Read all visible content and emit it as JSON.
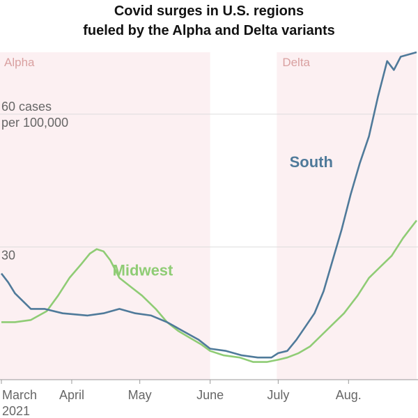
{
  "title_lines": [
    "Covid surges in U.S. regions",
    "fueled by the Alpha and Delta variants"
  ],
  "colors": {
    "south": "#4f7a9a",
    "midwest": "#8fcc75",
    "shade": "#fcf0f2",
    "period_label": "#d9a0a0",
    "grid": "#dddddd",
    "axis_text": "#666666"
  },
  "chart_data": {
    "type": "line",
    "title": "Covid surges in U.S. regions fueled by the Alpha and Delta variants",
    "xlabel": "",
    "ylabel": "cases per 100,000",
    "ylim": [
      0,
      74
    ],
    "xlim": [
      "2021-03-01",
      "2021-08-31"
    ],
    "y_ticks": [
      {
        "value": 30,
        "lines": [
          "30"
        ]
      },
      {
        "value": 60,
        "lines": [
          "60 cases",
          "per 100,000"
        ]
      }
    ],
    "x_ticks": [
      {
        "date": "2021-03-01",
        "lines": [
          "March",
          "2021"
        ]
      },
      {
        "date": "2021-04-01",
        "lines": [
          "April"
        ]
      },
      {
        "date": "2021-05-01",
        "lines": [
          "May"
        ]
      },
      {
        "date": "2021-06-01",
        "lines": [
          "June"
        ]
      },
      {
        "date": "2021-07-01",
        "lines": [
          "July"
        ]
      },
      {
        "date": "2021-08-01",
        "lines": [
          "Aug."
        ]
      }
    ],
    "periods": [
      {
        "label": "Alpha",
        "start": "2021-03-01",
        "end": "2021-06-01"
      },
      {
        "label": "Delta",
        "start": "2021-07-01",
        "end": "2021-08-31"
      }
    ],
    "series": [
      {
        "name": "South",
        "points": [
          [
            "2021-03-01",
            24
          ],
          [
            "2021-03-04",
            22
          ],
          [
            "2021-03-07",
            19.5
          ],
          [
            "2021-03-10",
            18
          ],
          [
            "2021-03-14",
            16
          ],
          [
            "2021-03-20",
            16
          ],
          [
            "2021-03-28",
            15
          ],
          [
            "2021-04-08",
            14.5
          ],
          [
            "2021-04-15",
            15
          ],
          [
            "2021-04-22",
            16
          ],
          [
            "2021-04-29",
            15
          ],
          [
            "2021-05-06",
            14.5
          ],
          [
            "2021-05-13",
            13
          ],
          [
            "2021-05-20",
            11
          ],
          [
            "2021-05-27",
            9
          ],
          [
            "2021-06-01",
            7
          ],
          [
            "2021-06-08",
            6.5
          ],
          [
            "2021-06-15",
            5.5
          ],
          [
            "2021-06-22",
            5
          ],
          [
            "2021-06-28",
            5
          ],
          [
            "2021-07-01",
            6
          ],
          [
            "2021-07-05",
            6.5
          ],
          [
            "2021-07-09",
            9
          ],
          [
            "2021-07-13",
            12
          ],
          [
            "2021-07-17",
            15
          ],
          [
            "2021-07-21",
            20
          ],
          [
            "2021-07-25",
            27
          ],
          [
            "2021-07-29",
            34
          ],
          [
            "2021-08-02",
            42
          ],
          [
            "2021-08-06",
            49
          ],
          [
            "2021-08-10",
            55
          ],
          [
            "2021-08-14",
            64
          ],
          [
            "2021-08-18",
            72
          ],
          [
            "2021-08-21",
            70
          ],
          [
            "2021-08-24",
            73
          ],
          [
            "2021-08-31",
            74
          ]
        ]
      },
      {
        "name": "Midwest",
        "points": [
          [
            "2021-03-01",
            13
          ],
          [
            "2021-03-07",
            13
          ],
          [
            "2021-03-14",
            13.5
          ],
          [
            "2021-03-21",
            15.5
          ],
          [
            "2021-03-26",
            19
          ],
          [
            "2021-03-31",
            23
          ],
          [
            "2021-04-05",
            26
          ],
          [
            "2021-04-09",
            28.5
          ],
          [
            "2021-04-12",
            29.5
          ],
          [
            "2021-04-15",
            29
          ],
          [
            "2021-04-18",
            27
          ],
          [
            "2021-04-22",
            23
          ],
          [
            "2021-04-27",
            21
          ],
          [
            "2021-05-02",
            19
          ],
          [
            "2021-05-08",
            16
          ],
          [
            "2021-05-13",
            13
          ],
          [
            "2021-05-18",
            11
          ],
          [
            "2021-05-23",
            9.5
          ],
          [
            "2021-05-28",
            8
          ],
          [
            "2021-06-01",
            6.5
          ],
          [
            "2021-06-07",
            5.5
          ],
          [
            "2021-06-14",
            5
          ],
          [
            "2021-06-20",
            4
          ],
          [
            "2021-06-26",
            4
          ],
          [
            "2021-07-01",
            4.5
          ],
          [
            "2021-07-05",
            5
          ],
          [
            "2021-07-10",
            6
          ],
          [
            "2021-07-15",
            7.5
          ],
          [
            "2021-07-20",
            10
          ],
          [
            "2021-07-25",
            12.5
          ],
          [
            "2021-07-30",
            15
          ],
          [
            "2021-08-05",
            19
          ],
          [
            "2021-08-10",
            23
          ],
          [
            "2021-08-15",
            25.5
          ],
          [
            "2021-08-20",
            28
          ],
          [
            "2021-08-25",
            32
          ],
          [
            "2021-08-28",
            34
          ],
          [
            "2021-08-31",
            36
          ]
        ]
      }
    ]
  }
}
